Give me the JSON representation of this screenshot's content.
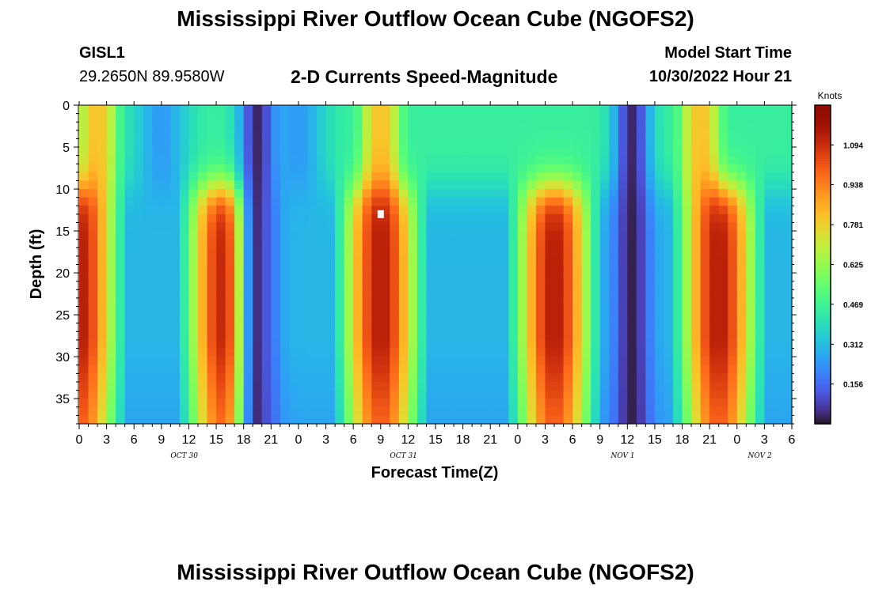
{
  "header": {
    "title": "Mississippi River Outflow Ocean Cube (NGOFS2)",
    "station_id": "GISL1",
    "station_coords": "29.2650N  89.9580W",
    "subtitle": "2-D Currents Speed-Magnitude",
    "model_start_label": "Model Start Time",
    "model_start_value": "10/30/2022 Hour 21"
  },
  "footer": {
    "title": "Mississippi River Outflow Ocean Cube (NGOFS2)"
  },
  "chart_data": {
    "type": "heatmap",
    "title": "2-D Currents Speed-Magnitude",
    "xlabel": "Forecast Time(Z)",
    "ylabel": "Depth (ft)",
    "colorbar_label": "Knots",
    "x_range": [
      0,
      78
    ],
    "y_range": [
      0,
      38
    ],
    "y_inverted": true,
    "x_ticks": [
      0,
      3,
      6,
      9,
      12,
      15,
      18,
      21,
      24,
      27,
      30,
      33,
      36,
      39,
      42,
      45,
      48,
      51,
      54,
      57,
      60,
      63,
      66,
      69,
      72,
      75,
      78
    ],
    "x_tick_labels": [
      "0",
      "3",
      "6",
      "9",
      "12",
      "15",
      "18",
      "21",
      "0",
      "3",
      "6",
      "9",
      "12",
      "15",
      "18",
      "21",
      "0",
      "3",
      "6",
      "9",
      "12",
      "15",
      "18",
      "21",
      "0",
      "3",
      "6"
    ],
    "date_labels": [
      {
        "text": "OCT 30",
        "x": 11.5
      },
      {
        "text": "OCT 31",
        "x": 35.5
      },
      {
        "text": "NOV 1",
        "x": 59.5
      },
      {
        "text": "NOV 2",
        "x": 74.5
      }
    ],
    "y_ticks": [
      0,
      5,
      10,
      15,
      20,
      25,
      30,
      35
    ],
    "y_tick_labels": [
      "0",
      "5",
      "10",
      "15",
      "20",
      "25",
      "30",
      "35"
    ],
    "colorbar": {
      "min": 0.0,
      "max": 1.25,
      "ticks": [
        1.094,
        0.938,
        0.781,
        0.625,
        0.469,
        0.312,
        0.156
      ],
      "tick_labels": [
        "1.094",
        "0.938",
        "0.781",
        "0.625",
        "0.469",
        "0.312",
        "0.156"
      ],
      "colormap": "turbo"
    },
    "max_marker": {
      "x": 33,
      "y": 13
    },
    "surface_slack_centers_hours": [
      9,
      24
    ],
    "surface_peak_hours": [
      2,
      33,
      68
    ],
    "deep_peak_hours": [
      0,
      16,
      33,
      52,
      70
    ],
    "slack_hours": [
      19.5,
      60.5
    ],
    "profile_surface_max": 0.82,
    "profile_deep_max": 1.14,
    "note": "Heatmap cells rendered from smooth estimated current-speed field (knots) over forecast hour (x) and depth in feet (y)."
  }
}
